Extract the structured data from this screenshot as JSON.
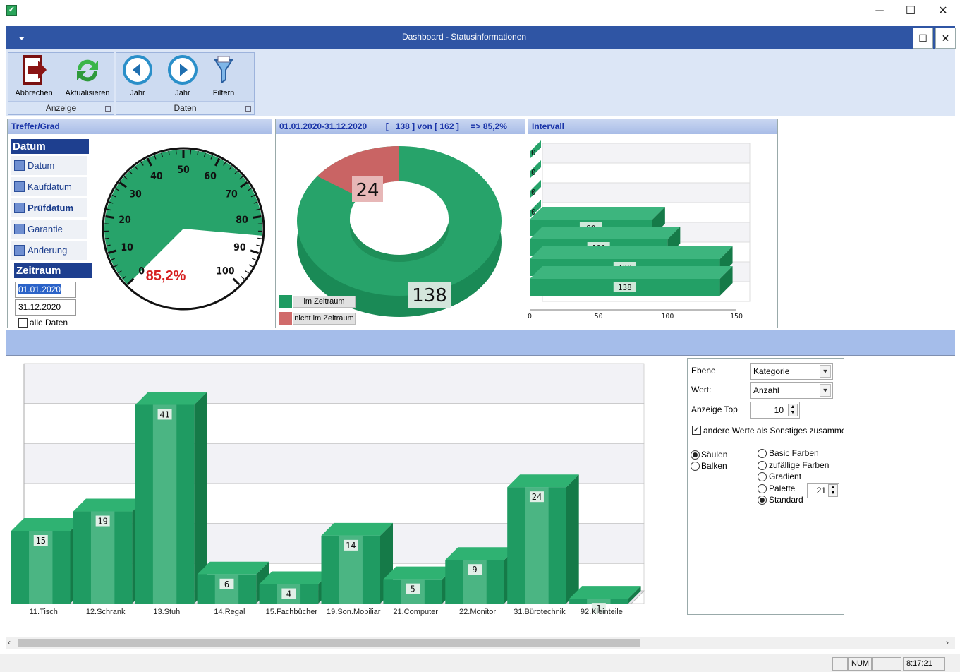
{
  "window": {
    "minimize": "─",
    "maximize": "☐",
    "close": "✕"
  },
  "app": {
    "title": "Dashboard  - Statusinformationen",
    "menu_glyph": "⏷"
  },
  "ribbon": {
    "groups": [
      {
        "label": "Anzeige"
      },
      {
        "label": "Daten"
      }
    ],
    "tools": {
      "cancel": "Abbrechen",
      "refresh": "Aktualisieren",
      "year_back": "Jahr",
      "year_fwd": "Jahr",
      "filter": "Filtern"
    }
  },
  "treffer": {
    "title": "Treffer/Grad",
    "datum_header": "Datum",
    "items": [
      "Datum",
      "Kaufdatum",
      "Prüfdatum",
      "Garantie",
      "Änderung"
    ],
    "selected_item": "Prüfdatum",
    "zeitraum_header": "Zeitraum",
    "from": "01.01.2020",
    "to": "31.12.2020",
    "alle_daten": "alle Daten",
    "alle_daten_checked": false,
    "gauge": {
      "value": 85.2,
      "label": "85,2%",
      "ticks": [
        "0",
        "10",
        "20",
        "30",
        "40",
        "50",
        "60",
        "70",
        "80",
        "90",
        "100"
      ],
      "fill_color": "#27a36a",
      "needle_area_color": "#ffffff"
    }
  },
  "donut": {
    "title": "01.01.2020-31.12.2020        [   138 ] von [ 162 ]     => 85,2%",
    "in_value": "138",
    "out_value": "24",
    "in_fraction": 0.852,
    "legend": [
      {
        "label": "im Zeitraum",
        "color": "#1f9b62"
      },
      {
        "label": "nicht im Zeitraum",
        "color": "#d06b6b"
      }
    ]
  },
  "intervall": {
    "title": "Intervall",
    "zero_labels": [
      "0",
      "0",
      "0",
      "0"
    ],
    "bars": [
      {
        "label": "89",
        "value": 89
      },
      {
        "label": "100",
        "value": 100
      },
      {
        "label": "138",
        "value": 138
      },
      {
        "label": "138",
        "value": 138
      }
    ],
    "axis_ticks": [
      "0",
      "50",
      "100",
      "150"
    ],
    "max": 150
  },
  "chart_data": {
    "type": "bar",
    "categories": [
      "11.Tisch",
      "12.Schrank",
      "13.Stuhl",
      "14.Regal",
      "15.Fachbücher",
      "19.Son.Mobiliar",
      "21.Computer",
      "22.Monitor",
      "31.Bürotechnik",
      "92.Kleinteile"
    ],
    "values": [
      15,
      19,
      41,
      6,
      4,
      14,
      5,
      9,
      24,
      1
    ],
    "value_labels": [
      "15",
      "19",
      "41",
      "6",
      "4",
      "14",
      "5",
      "9",
      "24",
      "1"
    ],
    "ylim": [
      0,
      45
    ],
    "grid": true,
    "color": "#1f9b62"
  },
  "settings": {
    "ebene_label": "Ebene",
    "ebene_value": "Kategorie",
    "wert_label": "Wert:",
    "wert_value": "Anzahl",
    "top_label": "Anzeige Top",
    "top_value": "10",
    "others_label": "andere Werte als Sonstiges zusammenfassen",
    "others_checked": true,
    "orientation": [
      {
        "label": "Säulen",
        "checked": true
      },
      {
        "label": "Balken",
        "checked": false
      }
    ],
    "colors": [
      {
        "label": "Basic Farben",
        "checked": false
      },
      {
        "label": "zufällige Farben",
        "checked": false
      },
      {
        "label": "Gradient",
        "checked": false
      },
      {
        "label": "Palette",
        "checked": false
      },
      {
        "label": "Standard",
        "checked": true
      }
    ],
    "palette_value": "21"
  },
  "statusbar": {
    "num": "NUM",
    "time": "8:17:21"
  }
}
